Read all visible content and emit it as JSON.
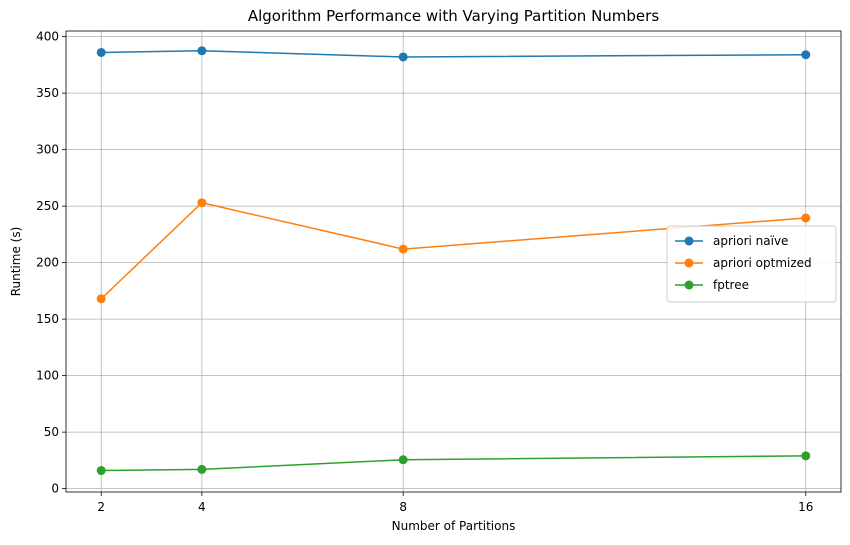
{
  "chart_data": {
    "type": "line",
    "title": "Algorithm Performance with Varying Partition Numbers",
    "xlabel": "Number of Partitions",
    "ylabel": "Runtime (s)",
    "x": [
      2,
      4,
      8,
      16
    ],
    "xticks": [
      2,
      4,
      8,
      16
    ],
    "yticks": [
      0,
      50,
      100,
      150,
      200,
      250,
      300,
      350,
      400
    ],
    "xlim": [
      1.3,
      16.7
    ],
    "ylim": [
      -3,
      405
    ],
    "grid": true,
    "legend_position": "center-right",
    "series": [
      {
        "name": "apriori naïve",
        "color": "#1f77b4",
        "values": [
          386,
          387.5,
          382,
          384
        ]
      },
      {
        "name": "apriori optmized",
        "color": "#ff7f0e",
        "values": [
          168,
          253,
          212,
          239.5
        ]
      },
      {
        "name": "fptree",
        "color": "#2ca02c",
        "values": [
          16,
          17,
          25.5,
          29
        ]
      }
    ]
  }
}
